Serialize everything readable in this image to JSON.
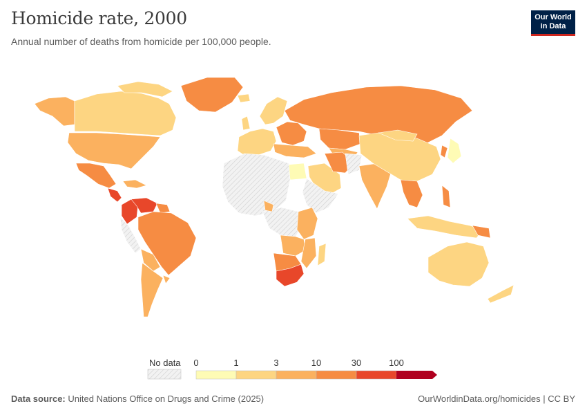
{
  "header": {
    "title": "Homicide rate, 2000",
    "subtitle": "Annual number of deaths from homicide per 100,000 people.",
    "logo_line1": "Our World",
    "logo_line2": "in Data"
  },
  "legend": {
    "no_data_label": "No data",
    "bins": [
      "0",
      "1",
      "3",
      "10",
      "30",
      "100"
    ]
  },
  "colors": {
    "bin_0_1": "#fefbb5",
    "bin_1_3": "#fdd582",
    "bin_3_10": "#fbb15f",
    "bin_10_30": "#f68c43",
    "bin_30_100": "#e8472a",
    "bin_100_plus": "#b0001f",
    "no_data": "#e6e6e6",
    "brand": "#002147"
  },
  "footer": {
    "source_label": "Data source:",
    "source_text": "United Nations Office on Drugs and Crime (2025)",
    "link": "OurWorldinData.org/homicides | CC BY"
  }
}
